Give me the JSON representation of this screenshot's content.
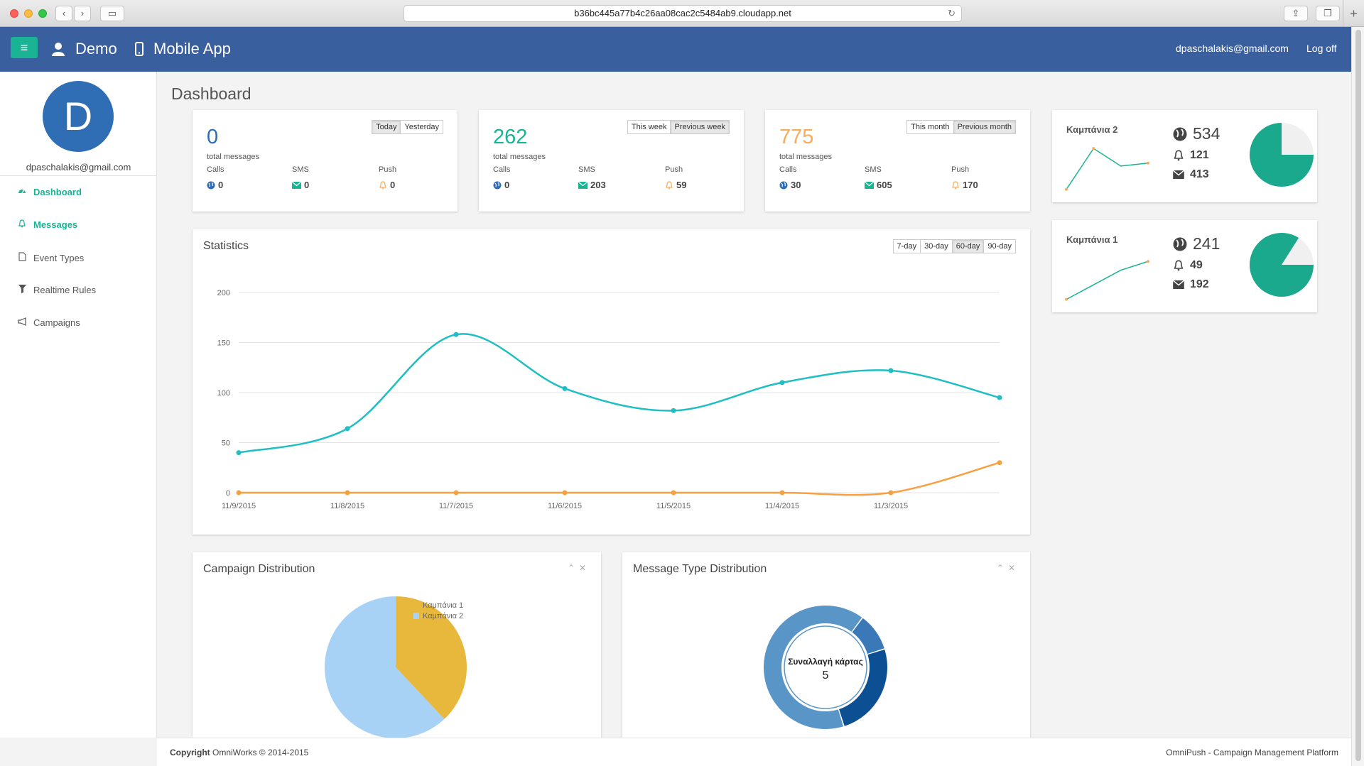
{
  "browser": {
    "url": "b36bc445a77b4c26aa08cac2c5484ab9.cloudapp.net"
  },
  "navbar": {
    "org_name": "Demo",
    "app_name": "Mobile App",
    "user_email": "dpaschalakis@gmail.com",
    "logoff_label": "Log off"
  },
  "sidebar": {
    "avatar_letter": "D",
    "email": "dpaschalakis@gmail.com",
    "items": [
      {
        "label": "Dashboard",
        "icon": "dashboard-icon",
        "active": true
      },
      {
        "label": "Messages",
        "icon": "bell-icon",
        "active": true
      },
      {
        "label": "Event Types",
        "icon": "file-icon",
        "active": false
      },
      {
        "label": "Realtime Rules",
        "icon": "filter-icon",
        "active": false
      },
      {
        "label": "Campaigns",
        "icon": "megaphone-icon",
        "active": false
      }
    ]
  },
  "page": {
    "title": "Dashboard"
  },
  "summary": [
    {
      "total": "0",
      "total_label": "total messages",
      "color": "#2f6db5",
      "tabs": [
        "Today",
        "Yesterday"
      ],
      "active_tab": 0,
      "cols": [
        "Calls",
        "SMS",
        "Push"
      ],
      "calls": "0",
      "sms": "0",
      "push": "0"
    },
    {
      "total": "262",
      "total_label": "total messages",
      "color": "#1ab394",
      "tabs": [
        "This week",
        "Previous week"
      ],
      "active_tab": 1,
      "cols": [
        "Calls",
        "SMS",
        "Push"
      ],
      "calls": "0",
      "sms": "203",
      "push": "59"
    },
    {
      "total": "775",
      "total_label": "total messages",
      "color": "#f8ac59",
      "tabs": [
        "This month",
        "Previous month"
      ],
      "active_tab": 1,
      "cols": [
        "Calls",
        "SMS",
        "Push"
      ],
      "calls": "30",
      "sms": "605",
      "push": "170"
    }
  ],
  "statistics": {
    "title": "Statistics",
    "ranges": [
      "7-day",
      "30-day",
      "60-day",
      "90-day"
    ],
    "active_range": 2
  },
  "chart_data": [
    {
      "type": "line",
      "title": "Statistics",
      "x": [
        "11/9/2015",
        "11/8/2015",
        "11/7/2015",
        "11/6/2015",
        "11/5/2015",
        "11/4/2015",
        "11/3/2015",
        ""
      ],
      "ylim": [
        0,
        200
      ],
      "yticks": [
        0,
        50,
        100,
        150,
        200
      ],
      "grid": true,
      "series": [
        {
          "values": [
            40,
            64,
            158,
            104,
            82,
            110,
            122,
            95
          ],
          "color": "#1fbec2"
        },
        {
          "values": [
            0,
            0,
            0,
            0,
            0,
            0,
            0,
            30
          ],
          "color": "#f8a041"
        }
      ]
    },
    {
      "type": "pie",
      "title": "Campaign Distribution",
      "labels": [
        "Καμπάνια 1",
        "Καμπάνια 2"
      ],
      "values": [
        38,
        62
      ],
      "colors": [
        "#e8b83c",
        "#a8d2f5"
      ],
      "legend": "top-right"
    },
    {
      "type": "pie",
      "title": "Message Type Distribution",
      "center_label": "Συναλλαγή κάρτας",
      "center_value": "5",
      "values": [
        10,
        25,
        65
      ],
      "colors": [
        "#3a78b7",
        "#0c4f92",
        "#5a95c7"
      ]
    }
  ],
  "campaigns": [
    {
      "name": "Καμπάνια 2",
      "total": "534",
      "push": "121",
      "sms": "413",
      "spark": [
        2,
        16,
        10,
        11
      ],
      "pie_fraction": 0.75
    },
    {
      "name": "Καμπάνια 1",
      "total": "241",
      "push": "49",
      "sms": "192",
      "spark": [
        2,
        7,
        12,
        15
      ],
      "pie_fraction": 0.84
    }
  ],
  "distribution": {
    "campaign_title": "Campaign Distribution",
    "message_title": "Message Type Distribution"
  },
  "footer": {
    "copyright_bold": "Copyright",
    "copyright_rest": " OmniWorks © 2014-2015",
    "right": "OmniPush - Campaign Management Platform"
  }
}
